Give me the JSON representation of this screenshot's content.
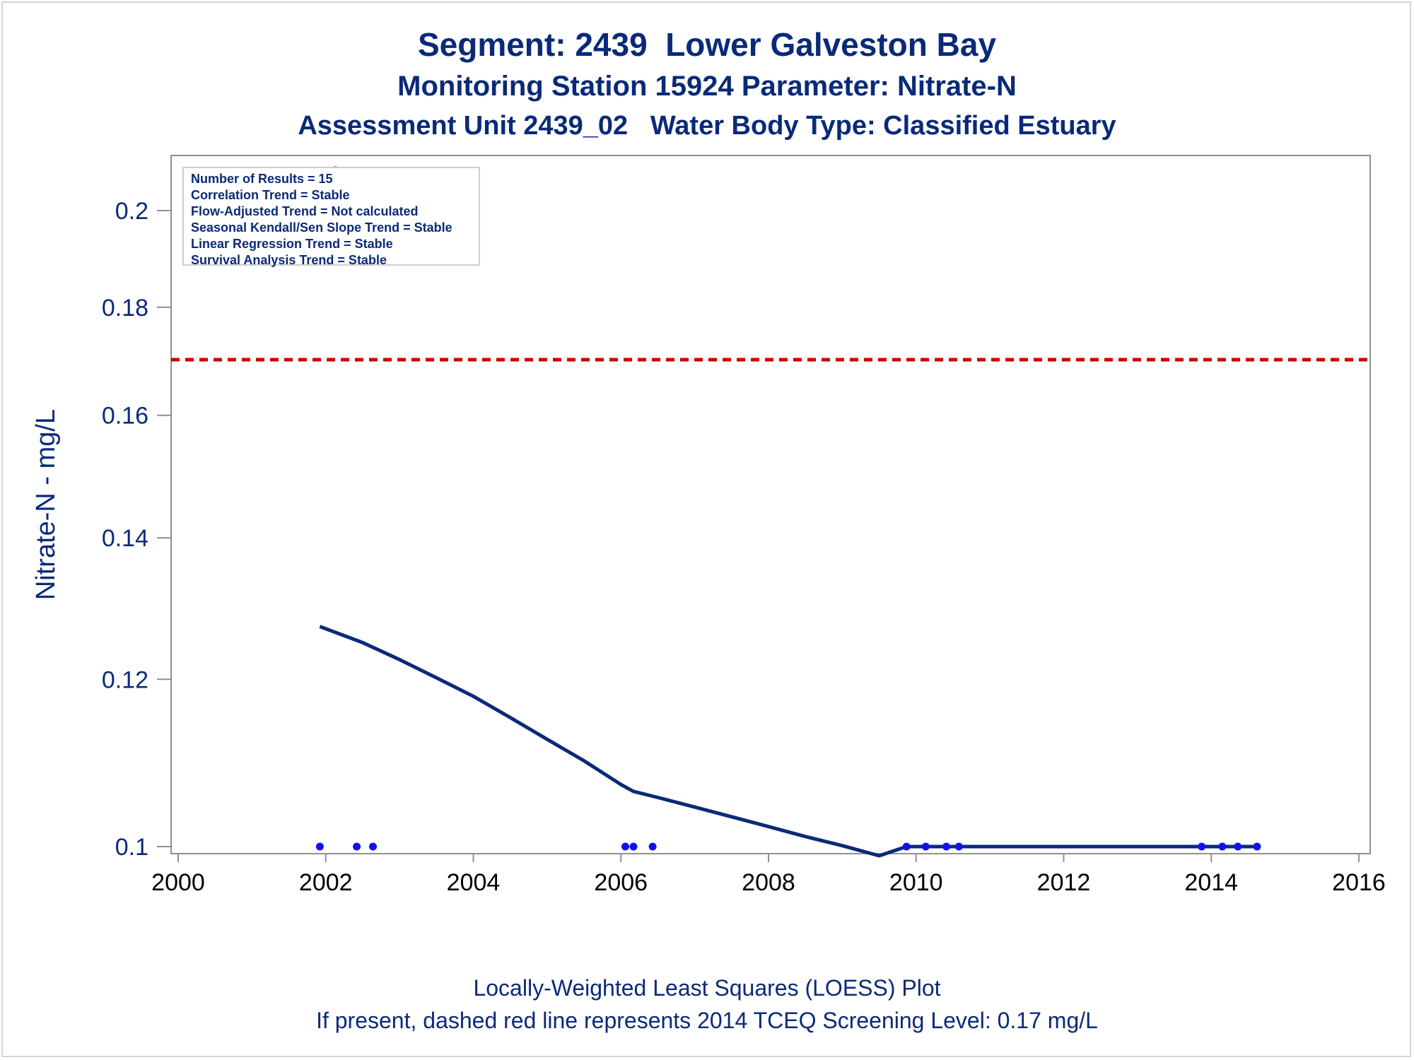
{
  "titles": {
    "line1": "Segment: 2439  Lower Galveston Bay",
    "line2": "Monitoring Station 15924 Parameter: Nitrate-N",
    "line3": "Assessment Unit 2439_02   Water Body Type: Classified Estuary"
  },
  "footnotes": {
    "line1": "Locally-Weighted Least Squares (LOESS) Plot",
    "line2": "If present, dashed red line represents 2014 TCEQ Screening Level: 0.17 mg/L"
  },
  "stats_box": [
    "Number of Results = 15",
    "Correlation Trend = Stable",
    "Flow-Adjusted Trend = Not calculated",
    "Seasonal Kendall/Sen Slope Trend = Stable",
    "Linear Regression Trend = Stable",
    "Survival Analysis Trend = Stable"
  ],
  "colors": {
    "text": "#0a2a78",
    "loess_line": "#0a2a78",
    "points": "#1010f0",
    "screening_line": "#cc0000",
    "axis": "#909090"
  },
  "chart_data": {
    "type": "scatter",
    "title": "Segment: 2439  Lower Galveston Bay",
    "xlabel": "",
    "ylabel": "Nitrate-N - mg/L",
    "y_scale": "log",
    "xlim": [
      2000,
      2016
    ],
    "ylim": [
      0.099,
      0.21
    ],
    "x_ticks": [
      2000,
      2002,
      2004,
      2006,
      2008,
      2010,
      2012,
      2014,
      2016
    ],
    "y_ticks": [
      0.1,
      0.12,
      0.14,
      0.16,
      0.18,
      0.2
    ],
    "y_tick_labels": [
      "0.1",
      "0.12",
      "0.14",
      "0.16",
      "0.18",
      "0.2"
    ],
    "grid": false,
    "legend": "none",
    "series": [
      {
        "type": "scatter",
        "x": [
          2001.92,
          2002.42,
          2002.64,
          2006.06,
          2006.17,
          2006.43,
          2009.87,
          2010.13,
          2010.41,
          2010.58,
          2013.87,
          2014.15,
          2014.36,
          2014.62,
          2002.13
        ],
        "y": [
          0.1,
          0.1,
          0.1,
          0.1,
          0.1,
          0.1,
          0.1,
          0.1,
          0.1,
          0.1,
          0.1,
          0.1,
          0.1,
          0.1,
          0.209
        ]
      },
      {
        "type": "line",
        "x": [
          2001.92,
          2002.5,
          2003.0,
          2003.5,
          2004.0,
          2004.5,
          2005.0,
          2005.5,
          2006.0,
          2006.17,
          2006.5,
          2007.0,
          2007.5,
          2008.0,
          2008.5,
          2009.0,
          2009.5,
          2009.87,
          2010.5,
          2012.0,
          2014.0,
          2014.62
        ],
        "y": [
          0.1271,
          0.1249,
          0.1226,
          0.1202,
          0.1178,
          0.1151,
          0.1124,
          0.1098,
          0.107,
          0.1062,
          0.1055,
          0.1044,
          0.1033,
          0.1022,
          0.1011,
          0.1001,
          0.099,
          0.1,
          0.1,
          0.1,
          0.1,
          0.1
        ]
      },
      {
        "type": "reference_line",
        "y": 0.17
      }
    ],
    "annotations": [
      "Number of Results = 15",
      "Correlation Trend = Stable",
      "Flow-Adjusted Trend = Not calculated",
      "Seasonal Kendall/Sen Slope Trend = Stable",
      "Linear Regression Trend = Stable",
      "Survival Analysis Trend = Stable"
    ]
  }
}
